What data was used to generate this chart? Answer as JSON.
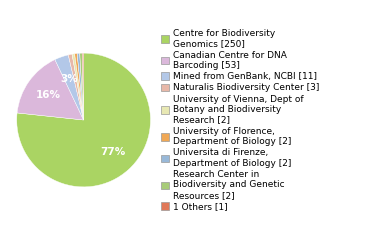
{
  "labels": [
    "Centre for Biodiversity\nGenomics [250]",
    "Canadian Centre for DNA\nBarcoding [53]",
    "Mined from GenBank, NCBI [11]",
    "Naturalis Biodiversity Center [3]",
    "University of Vienna, Dept of\nBotany and Biodiversity\nResearch [2]",
    "University of Florence,\nDepartment of Biology [2]",
    "Universita di Firenze,\nDepartment of Biology [2]",
    "Research Center in\nBiodiversity and Genetic\nResources [2]",
    "1 Others [1]"
  ],
  "values": [
    250,
    53,
    11,
    3,
    2,
    2,
    2,
    2,
    1
  ],
  "colors": [
    "#aad463",
    "#dbb8db",
    "#b3c8e8",
    "#e8b8a8",
    "#e8e8b3",
    "#f0a855",
    "#98b8d8",
    "#a8cc78",
    "#e07858"
  ],
  "legend_fontsize": 6.5,
  "pct_fontsize": 7.5,
  "pct_color": "white"
}
